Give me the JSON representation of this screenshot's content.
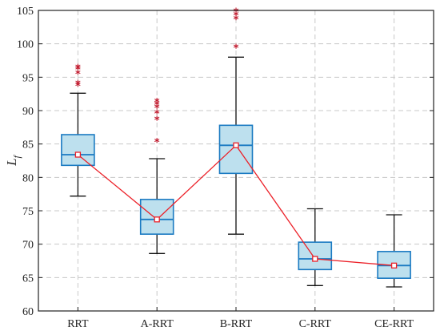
{
  "chart_data": {
    "type": "box",
    "categories": [
      "RRT",
      "A-RRT",
      "B-RRT",
      "C-RRT",
      "CE-RRT"
    ],
    "xlabel": "",
    "ylabel": "L",
    "ylabel_subscript": "f",
    "ylim": [
      60,
      105
    ],
    "yticks": [
      60,
      65,
      70,
      75,
      80,
      85,
      90,
      95,
      100,
      105
    ],
    "grid": true,
    "boxes": [
      {
        "category": "RRT",
        "whisker_low": 77.2,
        "q1": 81.8,
        "median": 83.4,
        "q3": 86.4,
        "whisker_high": 92.6,
        "mean": 83.4,
        "outliers": [
          93.7,
          94.0,
          95.5,
          96.2,
          96.4
        ]
      },
      {
        "category": "A-RRT",
        "whisker_low": 68.6,
        "q1": 71.5,
        "median": 73.7,
        "q3": 76.7,
        "whisker_high": 82.8,
        "mean": 73.7,
        "outliers": [
          85.3,
          88.6,
          89.6,
          90.4,
          90.9,
          91.3
        ]
      },
      {
        "category": "B-RRT",
        "whisker_low": 71.5,
        "q1": 80.6,
        "median": 84.8,
        "q3": 87.8,
        "whisker_high": 98.0,
        "mean": 84.8,
        "outliers": [
          99.4,
          103.7,
          104.3,
          104.8
        ]
      },
      {
        "category": "C-RRT",
        "whisker_low": 63.8,
        "q1": 66.2,
        "median": 67.8,
        "q3": 70.3,
        "whisker_high": 75.3,
        "mean": 67.8,
        "outliers": []
      },
      {
        "category": "CE-RRT",
        "whisker_low": 63.6,
        "q1": 64.9,
        "median": 66.8,
        "q3": 68.9,
        "whisker_high": 74.4,
        "mean": 66.8,
        "outliers": []
      }
    ],
    "colors": {
      "box_fill": "#bde0ee",
      "box_edge": "#1a7ac2",
      "whisker": "#111111",
      "outlier": "#c0182c",
      "mean_line": "#ec2028",
      "grid": "#c8c8c8",
      "axis": "#222222"
    }
  }
}
